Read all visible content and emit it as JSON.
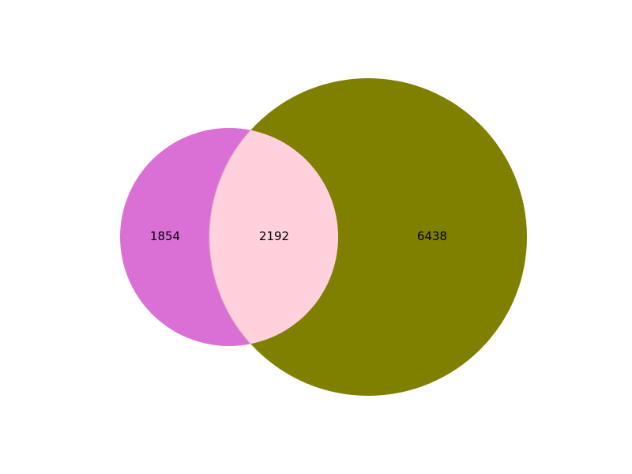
{
  "venn": {
    "sets": [
      {
        "id": "A",
        "color": "#da70d6"
      },
      {
        "id": "B",
        "color": "#808000"
      }
    ],
    "overlap_color": "#ffd1dc",
    "regions": {
      "only_a": "1854",
      "a_and_b": "2192",
      "only_b": "6438"
    }
  }
}
